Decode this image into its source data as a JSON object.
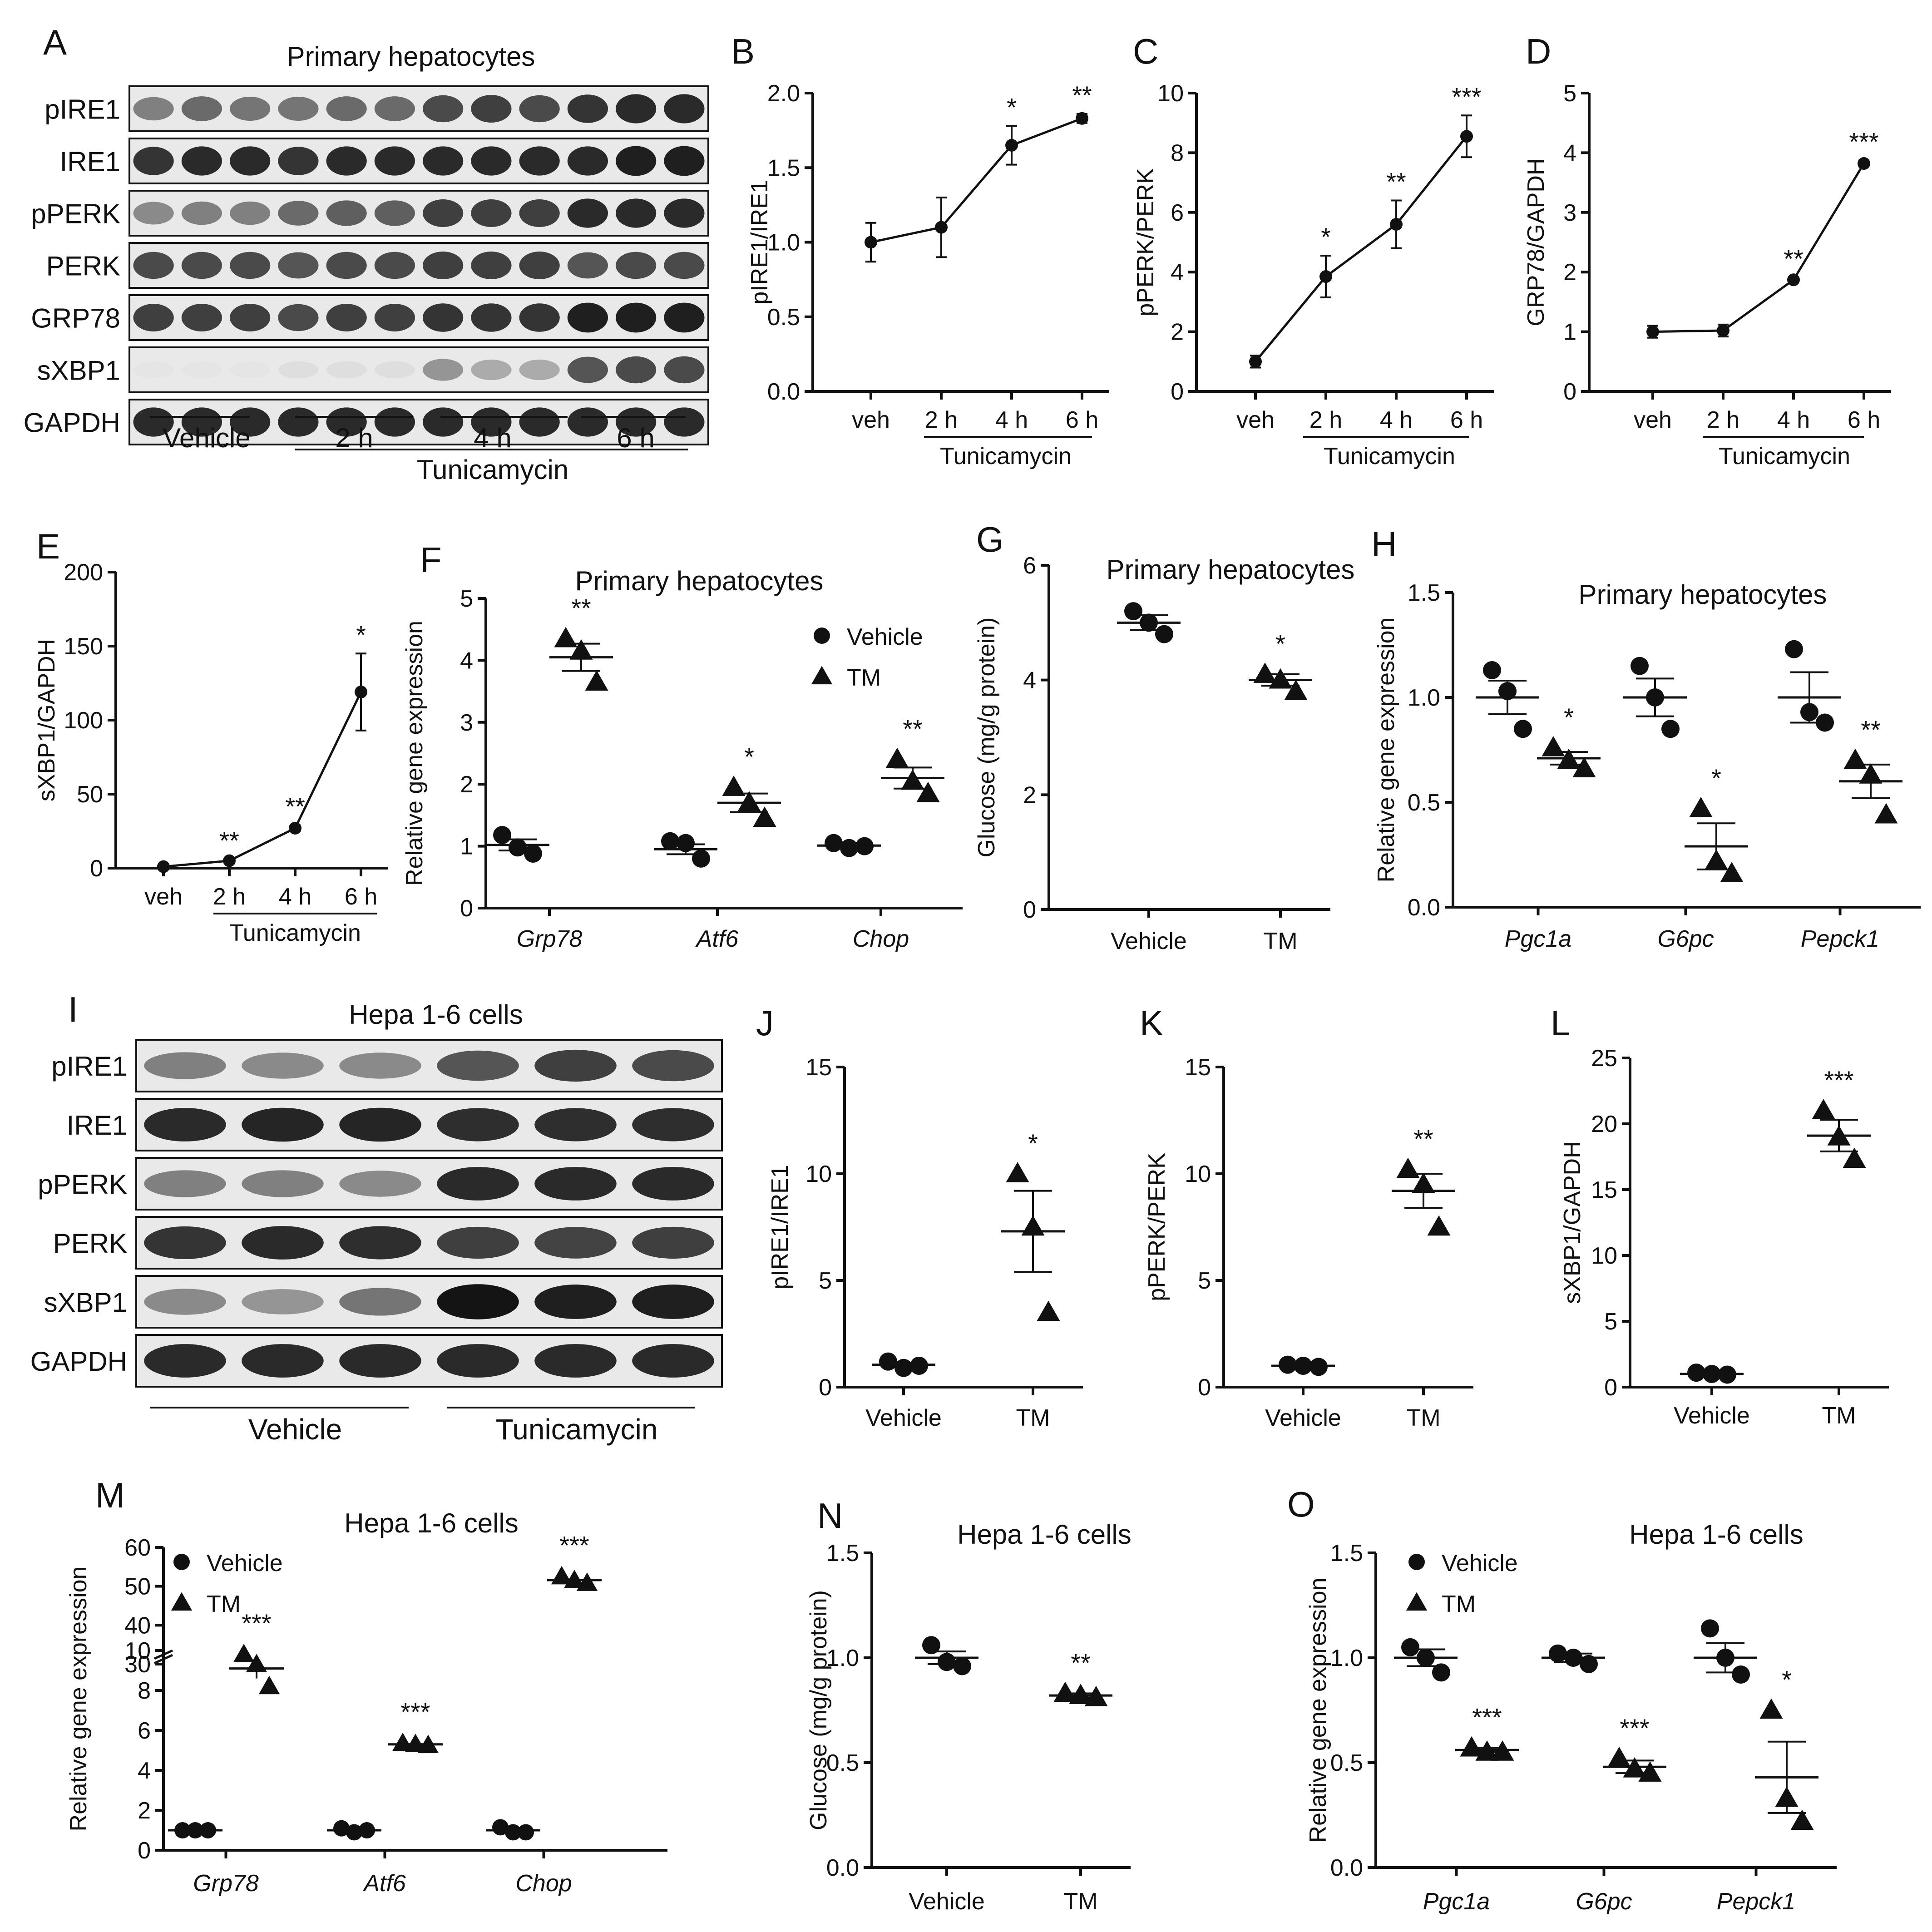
{
  "figure_labels": [
    "A",
    "B",
    "C",
    "D",
    "E",
    "F",
    "G",
    "H",
    "I",
    "J",
    "K",
    "L",
    "M",
    "N",
    "O"
  ],
  "chart_data": [
    {
      "id": "A",
      "type": "western-blot",
      "title": "Primary hepatocytes",
      "rows": [
        "pIRE1",
        "IRE1",
        "pPERK",
        "PERK",
        "GRP78",
        "sXBP1",
        "GAPDH"
      ],
      "lanes": 12,
      "intensity": [
        [
          0.5,
          0.6,
          0.55,
          0.55,
          0.6,
          0.6,
          0.75,
          0.8,
          0.75,
          0.85,
          0.9,
          0.9
        ],
        [
          0.85,
          0.9,
          0.9,
          0.85,
          0.9,
          0.9,
          0.9,
          0.9,
          0.9,
          0.9,
          0.95,
          0.95
        ],
        [
          0.45,
          0.5,
          0.5,
          0.6,
          0.65,
          0.65,
          0.8,
          0.8,
          0.8,
          0.9,
          0.9,
          0.9
        ],
        [
          0.75,
          0.75,
          0.75,
          0.7,
          0.75,
          0.75,
          0.8,
          0.8,
          0.8,
          0.7,
          0.75,
          0.75
        ],
        [
          0.8,
          0.8,
          0.8,
          0.75,
          0.8,
          0.8,
          0.85,
          0.85,
          0.85,
          0.95,
          0.95,
          0.95
        ],
        [
          0.03,
          0.03,
          0.03,
          0.06,
          0.06,
          0.06,
          0.4,
          0.3,
          0.3,
          0.7,
          0.75,
          0.75
        ],
        [
          0.9,
          0.9,
          0.9,
          0.9,
          0.9,
          0.9,
          0.9,
          0.9,
          0.9,
          0.9,
          0.9,
          0.9
        ]
      ],
      "groups": [
        "Vehicle",
        "2 h",
        "4 h",
        "6 h"
      ],
      "treatment": "Tunicamycin"
    },
    {
      "id": "B",
      "type": "line",
      "categories": [
        "veh",
        "2 h",
        "4 h",
        "6 h"
      ],
      "values": [
        1.0,
        1.1,
        1.65,
        1.83
      ],
      "errors": [
        0.13,
        0.2,
        0.13,
        0.03
      ],
      "stars": [
        "",
        "",
        "*",
        "**"
      ],
      "ylabel": "pIRE1/IRE1",
      "ylim": [
        0,
        2.0
      ],
      "yticks": [
        "0.0",
        "0.5",
        "1.0",
        "1.5",
        "2.0"
      ],
      "group_label": "Tunicamycin"
    },
    {
      "id": "C",
      "type": "line",
      "categories": [
        "veh",
        "2 h",
        "4 h",
        "6 h"
      ],
      "values": [
        1.0,
        3.85,
        5.6,
        8.55
      ],
      "errors": [
        0.2,
        0.7,
        0.8,
        0.7
      ],
      "stars": [
        "",
        "*",
        "**",
        "***"
      ],
      "ylabel": "pPERK/PERK",
      "ylim": [
        0,
        10
      ],
      "yticks": [
        "0",
        "2",
        "4",
        "6",
        "8",
        "10"
      ],
      "group_label": "Tunicamycin"
    },
    {
      "id": "D",
      "type": "line",
      "categories": [
        "veh",
        "2 h",
        "4 h",
        "6 h"
      ],
      "values": [
        1.0,
        1.02,
        1.87,
        3.82
      ],
      "errors": [
        0.1,
        0.1,
        0.04,
        0.05
      ],
      "stars": [
        "",
        "",
        "**",
        "***"
      ],
      "ylabel": "GRP78/GAPDH",
      "ylim": [
        0,
        5
      ],
      "yticks": [
        "0",
        "1",
        "2",
        "3",
        "4",
        "5"
      ],
      "group_label": "Tunicamycin"
    },
    {
      "id": "E",
      "type": "line",
      "categories": [
        "veh",
        "2 h",
        "4 h",
        "6 h"
      ],
      "values": [
        1,
        5,
        27,
        119
      ],
      "errors": [
        0.5,
        1,
        2,
        26
      ],
      "stars": [
        "",
        "**",
        "**",
        "*"
      ],
      "ylabel": "sXBP1/GAPDH",
      "ylim": [
        0,
        200
      ],
      "yticks": [
        "0",
        "50",
        "100",
        "150",
        "200"
      ],
      "group_label": "Tunicamycin"
    },
    {
      "id": "F",
      "type": "scatter",
      "title": "Primary hepatocytes",
      "categories": [
        "Grp78",
        "Atf6",
        "Chop"
      ],
      "series": [
        {
          "name": "Vehicle",
          "marker": "circle",
          "points": [
            [
              1.18,
              0.98,
              0.88
            ],
            [
              1.08,
              1.05,
              0.8
            ],
            [
              1.05,
              0.97,
              1.0
            ]
          ],
          "means": [
            1.02,
            0.95,
            1.01
          ],
          "sems": [
            0.09,
            0.08,
            0.03
          ]
        },
        {
          "name": "TM",
          "marker": "triangle",
          "points": [
            [
              4.35,
              4.15,
              3.65
            ],
            [
              1.95,
              1.7,
              1.45
            ],
            [
              2.4,
              2.05,
              1.85
            ]
          ],
          "means": [
            4.05,
            1.7,
            2.1
          ],
          "sems": [
            0.22,
            0.15,
            0.17
          ]
        }
      ],
      "stars": [
        "**",
        "*",
        "**"
      ],
      "ylabel": "Relative gene expression",
      "ylim": [
        0,
        5
      ],
      "yticks": [
        "0",
        "1",
        "2",
        "3",
        "4",
        "5"
      ],
      "legend": "top-right"
    },
    {
      "id": "G",
      "type": "scatter",
      "title": "Primary hepatocytes",
      "categories": [
        "Vehicle",
        "TM"
      ],
      "series": [
        {
          "name": "Vehicle",
          "marker": "circle",
          "points": [
            [
              5.2,
              5.0,
              4.8
            ]
          ],
          "means": [
            5.0
          ],
          "sems": [
            0.13
          ]
        },
        {
          "name": "TM",
          "marker": "triangle",
          "points": [
            [
              4.1,
              4.0,
              3.8
            ]
          ],
          "means": [
            4.0
          ],
          "sems": [
            0.1
          ]
        }
      ],
      "stars": [
        "",
        "*"
      ],
      "ylabel": "Glucose (mg/g protein)",
      "ylim": [
        0,
        6
      ],
      "yticks": [
        "0",
        "2",
        "4",
        "6"
      ]
    },
    {
      "id": "H",
      "type": "scatter",
      "title": "Primary hepatocytes",
      "categories": [
        "Pgc1a",
        "G6pc",
        "Pepck1"
      ],
      "series": [
        {
          "name": "Vehicle",
          "marker": "circle",
          "points": [
            [
              1.13,
              1.03,
              0.85
            ],
            [
              1.15,
              1.0,
              0.85
            ],
            [
              1.23,
              0.93,
              0.88
            ]
          ],
          "means": [
            1.0,
            1.0,
            1.0
          ],
          "sems": [
            0.08,
            0.09,
            0.12
          ]
        },
        {
          "name": "TM",
          "marker": "triangle",
          "points": [
            [
              0.76,
              0.7,
              0.66
            ],
            [
              0.47,
              0.22,
              0.16
            ],
            [
              0.7,
              0.63,
              0.44
            ]
          ],
          "means": [
            0.71,
            0.29,
            0.6
          ],
          "sems": [
            0.03,
            0.11,
            0.08
          ]
        }
      ],
      "stars": [
        "*",
        "*",
        "**"
      ],
      "ylabel": "Relative gene expression",
      "ylim": [
        0,
        1.5
      ],
      "yticks": [
        "0.0",
        "0.5",
        "1.0",
        "1.5"
      ]
    },
    {
      "id": "I",
      "type": "western-blot",
      "title": "Hepa 1-6 cells",
      "rows": [
        "pIRE1",
        "IRE1",
        "pPERK",
        "PERK",
        "sXBP1",
        "GAPDH"
      ],
      "lanes": 6,
      "intensity": [
        [
          0.5,
          0.45,
          0.45,
          0.7,
          0.8,
          0.75
        ],
        [
          0.9,
          0.92,
          0.92,
          0.88,
          0.88,
          0.88
        ],
        [
          0.5,
          0.5,
          0.45,
          0.9,
          0.9,
          0.9
        ],
        [
          0.85,
          0.9,
          0.88,
          0.8,
          0.78,
          0.8
        ],
        [
          0.45,
          0.4,
          0.55,
          1.0,
          0.95,
          0.95
        ],
        [
          0.9,
          0.9,
          0.9,
          0.9,
          0.9,
          0.9
        ]
      ],
      "groups": [
        "Vehicle",
        "Tunicamycin"
      ]
    },
    {
      "id": "J",
      "type": "scatter",
      "categories": [
        "Vehicle",
        "TM"
      ],
      "series": [
        {
          "name": "Vehicle",
          "marker": "circle",
          "points": [
            [
              1.2,
              0.9,
              1.0
            ]
          ],
          "means": [
            1.05
          ],
          "sems": [
            0.1
          ]
        },
        {
          "name": "TM",
          "marker": "triangle",
          "points": [
            [
              10.0,
              7.5,
              3.5
            ]
          ],
          "means": [
            7.3
          ],
          "sems": [
            1.9
          ]
        }
      ],
      "stars": [
        "",
        "*"
      ],
      "ylabel": "pIRE1/IRE1",
      "ylim": [
        0,
        15
      ],
      "yticks": [
        "0",
        "5",
        "10",
        "15"
      ]
    },
    {
      "id": "K",
      "type": "scatter",
      "categories": [
        "Vehicle",
        "TM"
      ],
      "series": [
        {
          "name": "Vehicle",
          "marker": "circle",
          "points": [
            [
              1.05,
              1.0,
              0.95
            ]
          ],
          "means": [
            1.0
          ],
          "sems": [
            0.03
          ]
        },
        {
          "name": "TM",
          "marker": "triangle",
          "points": [
            [
              10.2,
              9.5,
              7.5
            ]
          ],
          "means": [
            9.2
          ],
          "sems": [
            0.8
          ]
        }
      ],
      "stars": [
        "",
        "**"
      ],
      "ylabel": "pPERK/PERK",
      "ylim": [
        0,
        15
      ],
      "yticks": [
        "0",
        "5",
        "10",
        "15"
      ]
    },
    {
      "id": "L",
      "type": "scatter",
      "categories": [
        "Vehicle",
        "TM"
      ],
      "series": [
        {
          "name": "Vehicle",
          "marker": "circle",
          "points": [
            [
              1.1,
              1.0,
              0.95
            ]
          ],
          "means": [
            1.0
          ],
          "sems": [
            0.05
          ]
        },
        {
          "name": "TM",
          "marker": "triangle",
          "points": [
            [
              21.0,
              19.0,
              17.3
            ]
          ],
          "means": [
            19.1
          ],
          "sems": [
            1.2
          ]
        }
      ],
      "stars": [
        "",
        "***"
      ],
      "ylabel": "sXBP1/GAPDH",
      "ylim": [
        0,
        25
      ],
      "yticks": [
        "0",
        "5",
        "10",
        "15",
        "20",
        "25"
      ]
    },
    {
      "id": "M",
      "type": "scatter",
      "title": "Hepa 1-6 cells",
      "categories": [
        "Grp78",
        "Atf6",
        "Chop"
      ],
      "broken_axis": {
        "lower": [
          0,
          10
        ],
        "upper": [
          30,
          60
        ]
      },
      "series": [
        {
          "name": "Vehicle",
          "marker": "circle",
          "points": [
            [
              1.0,
              1.0,
              1.0
            ],
            [
              1.1,
              0.9,
              1.0
            ],
            [
              1.15,
              0.9,
              0.9
            ]
          ],
          "means": [
            1.0,
            1.0,
            1.0
          ],
          "sems": [
            0.03,
            0.05,
            0.06
          ]
        },
        {
          "name": "TM",
          "marker": "triangle",
          "points": [
            [
              9.8,
              9.3,
              8.2
            ],
            [
              5.35,
              5.3,
              5.25
            ],
            [
              52.5,
              51.5,
              50.8
            ]
          ],
          "means": [
            9.1,
            5.3,
            51.6
          ],
          "sems": [
            0.5,
            0.03,
            0.5
          ]
        }
      ],
      "stars": [
        "***",
        "***",
        "***"
      ],
      "ylabel": "Relative gene expression",
      "yticks_lower": [
        "0",
        "2",
        "4",
        "6",
        "8",
        "10"
      ],
      "yticks_upper": [
        "30",
        "40",
        "50",
        "60"
      ],
      "legend": "top-left"
    },
    {
      "id": "N",
      "type": "scatter",
      "title": "Hepa 1-6 cells",
      "categories": [
        "Vehicle",
        "TM"
      ],
      "series": [
        {
          "name": "Vehicle",
          "marker": "circle",
          "points": [
            [
              1.06,
              0.98,
              0.96
            ]
          ],
          "means": [
            1.0
          ],
          "sems": [
            0.03
          ]
        },
        {
          "name": "TM",
          "marker": "triangle",
          "points": [
            [
              0.83,
              0.82,
              0.81
            ]
          ],
          "means": [
            0.82
          ],
          "sems": [
            0.01
          ]
        }
      ],
      "stars": [
        "",
        "**"
      ],
      "ylabel": "Glucose (mg/g protein)",
      "ylim": [
        0,
        1.5
      ],
      "yticks": [
        "0.0",
        "0.5",
        "1.0",
        "1.5"
      ]
    },
    {
      "id": "O",
      "type": "scatter",
      "title": "Hepa 1-6 cells",
      "categories": [
        "Pgc1a",
        "G6pc",
        "Pepck1"
      ],
      "series": [
        {
          "name": "Vehicle",
          "marker": "circle",
          "points": [
            [
              1.05,
              1.0,
              0.93
            ],
            [
              1.02,
              1.0,
              0.97
            ],
            [
              1.14,
              1.0,
              0.92
            ]
          ],
          "means": [
            1.0,
            1.0,
            1.0
          ],
          "sems": [
            0.04,
            0.02,
            0.07
          ]
        },
        {
          "name": "TM",
          "marker": "triangle",
          "points": [
            [
              0.57,
              0.55,
              0.55
            ],
            [
              0.52,
              0.47,
              0.45
            ],
            [
              0.75,
              0.33,
              0.22
            ]
          ],
          "means": [
            0.56,
            0.48,
            0.43
          ],
          "sems": [
            0.01,
            0.03,
            0.17
          ]
        }
      ],
      "stars": [
        "***",
        "***",
        "*"
      ],
      "ylabel": "Relative gene expression",
      "ylim": [
        0,
        1.5
      ],
      "yticks": [
        "0.0",
        "0.5",
        "1.0",
        "1.5"
      ],
      "legend": "top-left"
    }
  ]
}
